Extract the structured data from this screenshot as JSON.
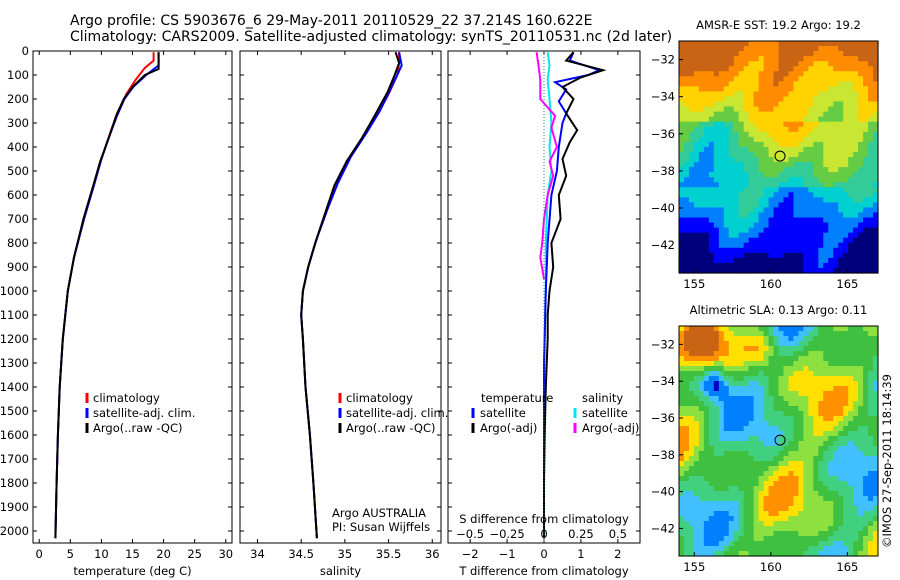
{
  "header": {
    "title_line1": "Argo profile: CS 5903676_6 29-May-2011 20110529_22 37.214S 160.622E",
    "title_line2": "Climatology: CARS2009. Satellite-adjusted climatology: synTS_20110531.nc (2d later)"
  },
  "colors": {
    "climatology": "#ff0000",
    "satellite_adj": "#0000ff",
    "argo": "#000000",
    "salinity_satellite": "#00e5ee",
    "salinity_argo": "#ff00ff",
    "marker": "#000000"
  },
  "footer": {
    "institution": "Argo AUSTRALIA",
    "pi": "PI: Susan Wijffels",
    "stamp": "©IMOS 27-Sep-2011 18:14:39"
  },
  "chart_data": [
    {
      "id": "temperature",
      "type": "line",
      "xlabel": "temperature (deg C)",
      "xlim": [
        -1,
        31
      ],
      "xticks": [
        0,
        5,
        10,
        15,
        20,
        25,
        30
      ],
      "ylim": [
        2050,
        0
      ],
      "yticks": [
        0,
        100,
        200,
        300,
        400,
        500,
        600,
        700,
        800,
        900,
        1000,
        1100,
        1200,
        1300,
        1400,
        1500,
        1600,
        1700,
        1800,
        1900,
        2000
      ],
      "legend": [
        "climatology",
        "satellite-adj. clim.",
        "Argo(..raw -QC)"
      ],
      "series": [
        {
          "name": "climatology",
          "color": "#ff0000",
          "points": [
            [
              18.4,
              5
            ],
            [
              18.4,
              40
            ],
            [
              17.0,
              70
            ],
            [
              15.5,
              120
            ],
            [
              14.0,
              180
            ],
            [
              12.5,
              260
            ],
            [
              11.3,
              350
            ],
            [
              10.0,
              450
            ],
            [
              8.8,
              560
            ],
            [
              7.2,
              700
            ],
            [
              5.6,
              860
            ],
            [
              4.6,
              1000
            ],
            [
              3.8,
              1200
            ],
            [
              3.3,
              1400
            ],
            [
              3.0,
              1600
            ],
            [
              2.8,
              1800
            ],
            [
              2.6,
              2030
            ]
          ]
        },
        {
          "name": "satellite-adj. clim.",
          "color": "#0000ff",
          "points": [
            [
              19.2,
              5
            ],
            [
              19.2,
              60
            ],
            [
              17.2,
              100
            ],
            [
              15.1,
              150
            ],
            [
              13.7,
              200
            ],
            [
              12.5,
              270
            ],
            [
              11.2,
              360
            ],
            [
              10.0,
              450
            ],
            [
              8.8,
              560
            ],
            [
              7.2,
              700
            ],
            [
              5.6,
              860
            ],
            [
              4.6,
              1000
            ],
            [
              3.8,
              1200
            ],
            [
              3.3,
              1400
            ],
            [
              3.0,
              1600
            ],
            [
              2.8,
              1800
            ],
            [
              2.6,
              2030
            ]
          ]
        },
        {
          "name": "Argo(..raw -QC)",
          "color": "#000000",
          "points": [
            [
              19.2,
              5
            ],
            [
              19.2,
              75
            ],
            [
              17.0,
              100
            ],
            [
              15.0,
              150
            ],
            [
              13.6,
              200
            ],
            [
              12.4,
              270
            ],
            [
              11.2,
              360
            ],
            [
              9.8,
              460
            ],
            [
              8.7,
              560
            ],
            [
              7.1,
              700
            ],
            [
              5.6,
              860
            ],
            [
              4.6,
              1000
            ],
            [
              3.8,
              1200
            ],
            [
              3.3,
              1400
            ],
            [
              3.0,
              1600
            ],
            [
              2.8,
              1800
            ],
            [
              2.6,
              2030
            ]
          ]
        }
      ]
    },
    {
      "id": "salinity",
      "type": "line",
      "xlabel": "salinity",
      "xlim": [
        33.8,
        36.1
      ],
      "xticks": [
        34,
        34.5,
        35,
        35.5,
        36
      ],
      "ylim": [
        2050,
        0
      ],
      "legend": [
        "climatology",
        "satellite-adj. clim.",
        "Argo(..raw -QC)"
      ],
      "series": [
        {
          "name": "climatology",
          "color": "#ff0000",
          "points": [
            [
              35.62,
              5
            ],
            [
              35.62,
              50
            ],
            [
              35.6,
              100
            ],
            [
              35.5,
              180
            ],
            [
              35.38,
              260
            ],
            [
              35.22,
              350
            ],
            [
              35.05,
              450
            ],
            [
              34.9,
              560
            ],
            [
              34.78,
              680
            ],
            [
              34.66,
              800
            ],
            [
              34.58,
              900
            ],
            [
              34.52,
              1000
            ],
            [
              34.5,
              1100
            ],
            [
              34.52,
              1200
            ],
            [
              34.55,
              1400
            ],
            [
              34.6,
              1600
            ],
            [
              34.64,
              1800
            ],
            [
              34.68,
              2030
            ]
          ]
        },
        {
          "name": "satellite-adj. clim.",
          "color": "#0000ff",
          "points": [
            [
              35.62,
              5
            ],
            [
              35.65,
              60
            ],
            [
              35.6,
              100
            ],
            [
              35.52,
              160
            ],
            [
              35.4,
              250
            ],
            [
              35.25,
              340
            ],
            [
              35.07,
              440
            ],
            [
              34.92,
              550
            ],
            [
              34.8,
              660
            ],
            [
              34.68,
              780
            ],
            [
              34.58,
              900
            ],
            [
              34.52,
              1000
            ],
            [
              34.5,
              1100
            ],
            [
              34.52,
              1200
            ],
            [
              34.55,
              1400
            ],
            [
              34.6,
              1600
            ],
            [
              34.64,
              1800
            ],
            [
              34.68,
              2030
            ]
          ]
        },
        {
          "name": "Argo(..raw -QC)",
          "color": "#000000",
          "points": [
            [
              35.58,
              5
            ],
            [
              35.62,
              50
            ],
            [
              35.57,
              100
            ],
            [
              35.49,
              170
            ],
            [
              35.34,
              270
            ],
            [
              35.2,
              360
            ],
            [
              35.02,
              460
            ],
            [
              34.88,
              560
            ],
            [
              34.77,
              680
            ],
            [
              34.66,
              800
            ],
            [
              34.58,
              900
            ],
            [
              34.52,
              1000
            ],
            [
              34.5,
              1100
            ],
            [
              34.52,
              1200
            ],
            [
              34.55,
              1400
            ],
            [
              34.6,
              1600
            ],
            [
              34.64,
              1800
            ],
            [
              34.68,
              2030
            ]
          ]
        }
      ]
    },
    {
      "id": "difference",
      "type": "line",
      "xlabel": "T difference from climatology",
      "xlabel_top": "S difference from climatology",
      "xlim": [
        -2.6,
        2.6
      ],
      "xticks": [
        -2,
        -1,
        0,
        1,
        2
      ],
      "s_xticks": [
        -0.5,
        -0.25,
        0,
        0.25,
        0.5
      ],
      "ylim": [
        2050,
        0
      ],
      "legend_temperature": {
        "title": "temperature",
        "items": [
          "satellite",
          "Argo(-adj)"
        ]
      },
      "legend_salinity": {
        "title": "salinity",
        "items": [
          "satellite",
          "Argo(-adj)"
        ]
      },
      "series": [
        {
          "name": "satellite (salinity)",
          "color": "#00e5ee",
          "points": [
            [
              0.1,
              5
            ],
            [
              0.15,
              60
            ],
            [
              0.1,
              120
            ],
            [
              0.15,
              200
            ],
            [
              0.2,
              300
            ],
            [
              0.15,
              400
            ],
            [
              0.2,
              500
            ],
            [
              0.1,
              600
            ],
            [
              0.05,
              800
            ],
            [
              0.05,
              1000
            ],
            [
              0.02,
              1200
            ],
            [
              0.0,
              1500
            ],
            [
              0.0,
              1800
            ],
            [
              0.0,
              2030
            ]
          ]
        },
        {
          "name": "Argo(-adj) (salinity)",
          "color": "#ff00ff",
          "points": [
            [
              -0.2,
              5
            ],
            [
              -0.15,
              60
            ],
            [
              -0.1,
              120
            ],
            [
              -0.1,
              200
            ],
            [
              0.3,
              270
            ],
            [
              0.2,
              320
            ],
            [
              0.35,
              400
            ],
            [
              0.15,
              460
            ],
            [
              0.25,
              520
            ],
            [
              0.1,
              600
            ],
            [
              0.0,
              700
            ],
            [
              -0.05,
              800
            ],
            [
              -0.1,
              860
            ],
            [
              0.0,
              950
            ]
          ]
        },
        {
          "name": "satellite (temperature)",
          "color": "#0000ff",
          "points": [
            [
              0.8,
              5
            ],
            [
              0.7,
              40
            ],
            [
              1.5,
              80
            ],
            [
              1.2,
              100
            ],
            [
              0.3,
              130
            ],
            [
              0.6,
              160
            ],
            [
              0.4,
              210
            ],
            [
              0.6,
              260
            ],
            [
              0.5,
              300
            ],
            [
              0.4,
              400
            ],
            [
              0.35,
              500
            ],
            [
              0.2,
              600
            ],
            [
              0.1,
              800
            ],
            [
              0.05,
              1000
            ],
            [
              0.0,
              1300
            ],
            [
              0.0,
              1600
            ],
            [
              0.0,
              2030
            ]
          ]
        },
        {
          "name": "Argo(-adj) (temperature)",
          "color": "#000000",
          "points": [
            [
              0.8,
              5
            ],
            [
              0.6,
              40
            ],
            [
              1.6,
              80
            ],
            [
              1.0,
              110
            ],
            [
              0.5,
              150
            ],
            [
              0.8,
              200
            ],
            [
              0.6,
              260
            ],
            [
              0.9,
              330
            ],
            [
              0.7,
              380
            ],
            [
              0.5,
              450
            ],
            [
              0.6,
              520
            ],
            [
              0.4,
              600
            ],
            [
              0.45,
              700
            ],
            [
              0.2,
              800
            ],
            [
              0.25,
              900
            ],
            [
              0.15,
              1000
            ],
            [
              0.1,
              1100
            ],
            [
              0.1,
              1200
            ],
            [
              0.05,
              1400
            ],
            [
              0.02,
              1600
            ],
            [
              0.0,
              1800
            ],
            [
              0.0,
              2030
            ]
          ]
        }
      ]
    },
    {
      "id": "sst_map",
      "type": "heatmap",
      "title": "AMSR-E SST: 19.2 Argo: 19.2",
      "xlim": [
        154,
        167
      ],
      "ylim": [
        -43.5,
        -31
      ],
      "xticks": [
        155,
        160,
        165
      ],
      "yticks": [
        -32,
        -34,
        -36,
        -38,
        -40,
        -42
      ],
      "marker": [
        160.6,
        -37.2
      ],
      "colors": [
        "#00007d",
        "#0000ff",
        "#0080ff",
        "#00d0d0",
        "#33cc99",
        "#66cc44",
        "#c8e632",
        "#ffd200",
        "#ff8c00",
        "#c86414"
      ]
    },
    {
      "id": "sla_map",
      "type": "heatmap",
      "title": "Altimetric SLA: 0.13 Argo: 0.11",
      "xlim": [
        154,
        167
      ],
      "ylim": [
        -43.5,
        -31
      ],
      "xticks": [
        155,
        160,
        165
      ],
      "yticks": [
        -32,
        -34,
        -36,
        -38,
        -40,
        -42
      ],
      "marker": [
        160.6,
        -37.2
      ],
      "colors": [
        "#0000c8",
        "#0080ff",
        "#40c0ff",
        "#40d080",
        "#40c040",
        "#8ce040",
        "#ffe000",
        "#ff9000",
        "#c86414"
      ]
    }
  ]
}
